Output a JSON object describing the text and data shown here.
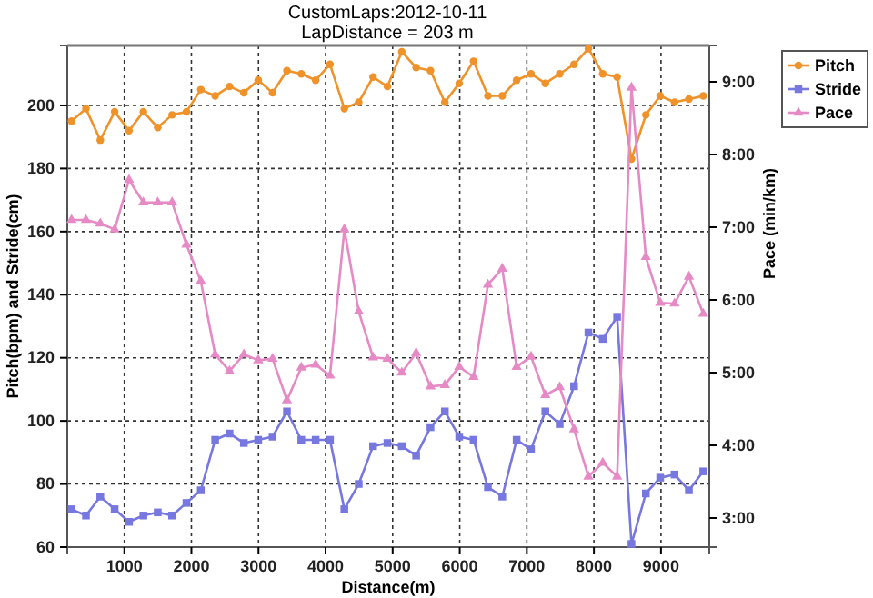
{
  "chart_data": {
    "type": "line",
    "title": "CustomLaps:2012-10-11",
    "subtitle": "LapDistance = 203 m",
    "xlabel": "Distance(m)",
    "ylabel": "Pitch(bpm) and Stride(cm)",
    "y2label": "Pace (min/km)",
    "x": [
      214,
      428,
      642,
      856,
      1070,
      1284,
      1498,
      1712,
      1926,
      2140,
      2354,
      2568,
      2782,
      2996,
      3210,
      3424,
      3638,
      3852,
      4066,
      4280,
      4494,
      4708,
      4922,
      5136,
      5350,
      5564,
      5778,
      5992,
      6206,
      6420,
      6634,
      6848,
      7062,
      7276,
      7490,
      7704,
      7918,
      8132,
      8346,
      8560,
      8774,
      8988,
      9202,
      9416,
      9630
    ],
    "xlim": [
      150,
      9720
    ],
    "xticks": [
      1000,
      2000,
      3000,
      4000,
      5000,
      6000,
      7000,
      8000,
      9000
    ],
    "ylim": [
      60,
      219
    ],
    "yticks": [
      60,
      80,
      100,
      120,
      140,
      160,
      180,
      200
    ],
    "y2lim": [
      2.6,
      9.5
    ],
    "y2ticks": [
      {
        "value": 3,
        "label": "3:00"
      },
      {
        "value": 4,
        "label": "4:00"
      },
      {
        "value": 5,
        "label": "5:00"
      },
      {
        "value": 6,
        "label": "6:00"
      },
      {
        "value": 7,
        "label": "7:00"
      },
      {
        "value": 8,
        "label": "8:00"
      },
      {
        "value": 9,
        "label": "9:00"
      }
    ],
    "grid": true,
    "legend": "top right",
    "line_style": "solid",
    "series": [
      {
        "name": "Pitch",
        "color": "#f0922a",
        "marker": "circle",
        "values": [
          195,
          199,
          189,
          198,
          192,
          198,
          193,
          197,
          198,
          205,
          203,
          206,
          204,
          208,
          204,
          211,
          210,
          208,
          213,
          199,
          201,
          209,
          206,
          217,
          212,
          211,
          201,
          207,
          214,
          203,
          203,
          208,
          210,
          207,
          210,
          213,
          218,
          210,
          209,
          183,
          197,
          203,
          201,
          202,
          203
        ]
      },
      {
        "name": "Stride",
        "color": "#7777e0",
        "marker": "square",
        "values": [
          72,
          70,
          76,
          72,
          68,
          70,
          71,
          70,
          74,
          78,
          94,
          96,
          93,
          94,
          95,
          103,
          94,
          94,
          94,
          72,
          80,
          92,
          93,
          92,
          89,
          98,
          103,
          95,
          94,
          79,
          76,
          94,
          91,
          103,
          99,
          111,
          128,
          126,
          133,
          61,
          77,
          82,
          83,
          78,
          84
        ]
      },
      {
        "name": "Pace",
        "color": "#e68ac6",
        "marker": "triangle",
        "axis": "y2",
        "values": [
          7.1,
          7.1,
          7.05,
          6.97,
          7.65,
          7.34,
          7.34,
          7.34,
          6.76,
          6.26,
          5.25,
          5.02,
          5.25,
          5.17,
          5.19,
          4.62,
          5.07,
          5.11,
          4.96,
          6.97,
          5.84,
          5.21,
          5.19,
          5.0,
          5.27,
          4.81,
          4.83,
          5.08,
          4.94,
          6.21,
          6.43,
          5.08,
          5.22,
          4.69,
          4.8,
          4.22,
          3.57,
          3.76,
          3.57,
          8.92,
          6.59,
          5.96,
          5.95,
          6.32,
          5.81
        ]
      }
    ]
  }
}
